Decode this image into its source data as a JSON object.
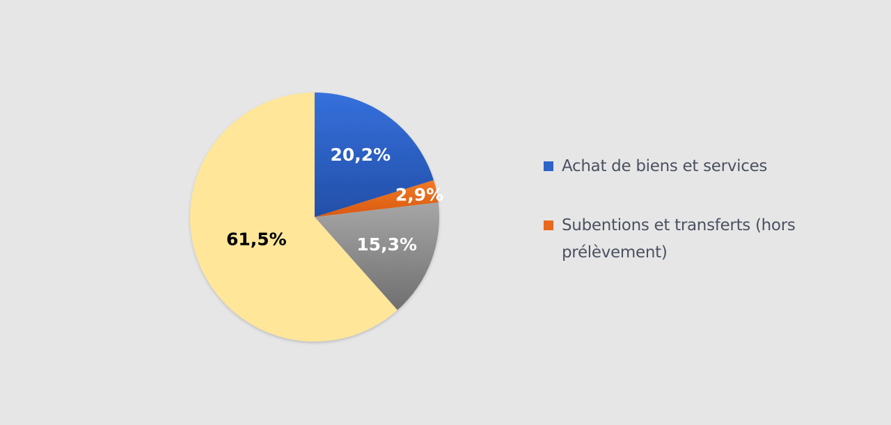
{
  "chart_data": {
    "type": "pie",
    "slices": [
      {
        "label": "Achat de biens et services",
        "value": 20.2,
        "display": "20,2%",
        "color": "#2e63c7",
        "label_color": "#ffffff",
        "in_legend": true
      },
      {
        "label": "Subentions et transferts (hors prélèvement)",
        "value": 2.9,
        "display": "2,9%",
        "color": "#e8681c",
        "label_color": "#ffffff",
        "in_legend": true
      },
      {
        "label": "",
        "value": 15.3,
        "display": "15,3%",
        "color": "#8c8c8c",
        "label_color": "#ffffff",
        "in_legend": false
      },
      {
        "label": "",
        "value": 61.5,
        "display": "61,5%",
        "color": "#ffe699",
        "label_color": "#000000",
        "in_legend": false
      }
    ],
    "start_angle": "12 o'clock",
    "direction": "clockwise",
    "legend_position": "right"
  },
  "legend": {
    "items": [
      {
        "label": "Achat de biens et services",
        "color": "#2e63c7"
      },
      {
        "label": "Subentions et transferts (hors prélèvement)",
        "color": "#e8681c"
      }
    ]
  }
}
